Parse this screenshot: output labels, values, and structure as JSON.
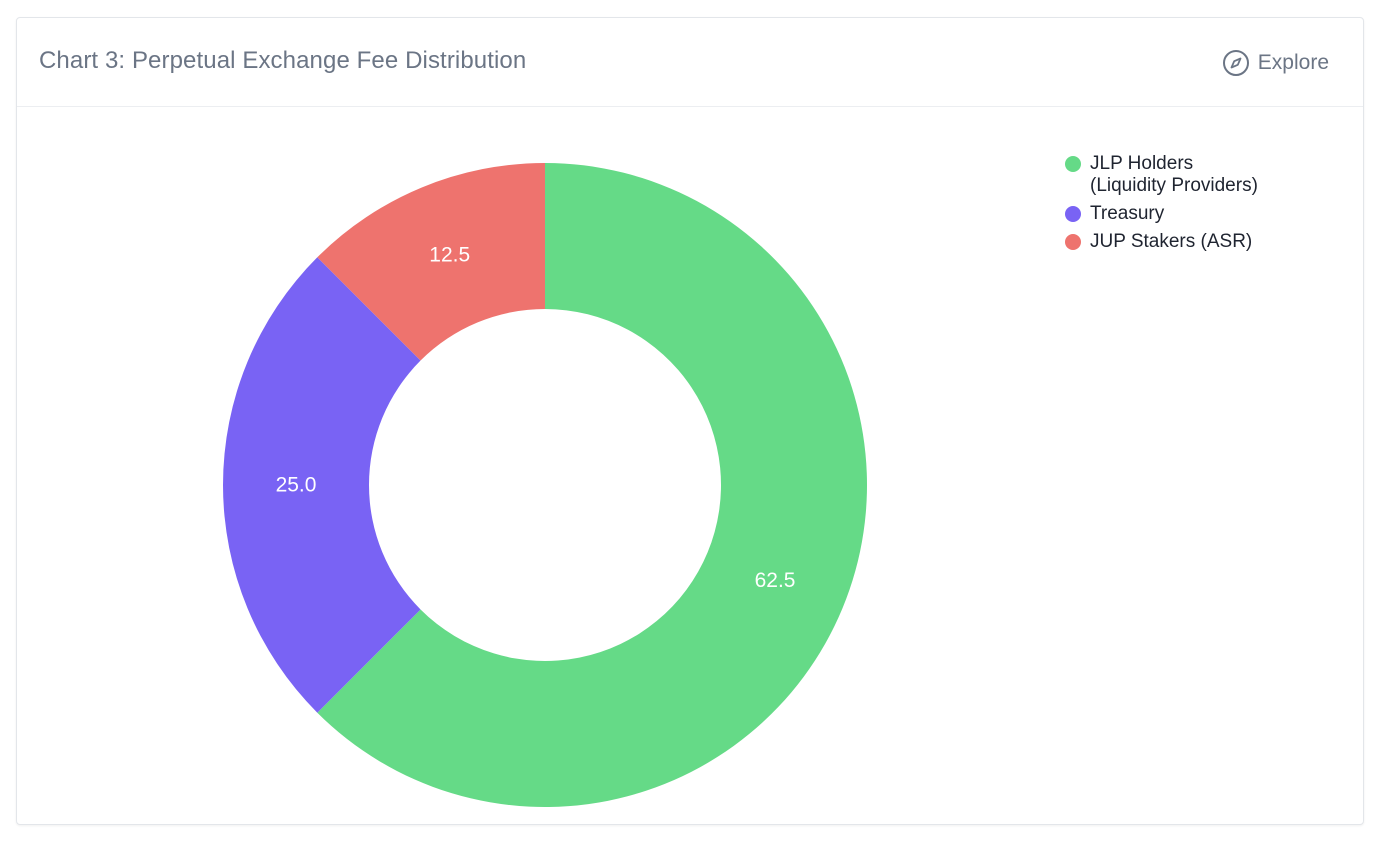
{
  "header": {
    "title": "Chart 3: Perpetual Exchange Fee Distribution",
    "explore_label": "Explore",
    "explore_icon": "compass-icon"
  },
  "chart_data": {
    "type": "pie",
    "variant": "donut",
    "categories": [
      "JLP Holders\n(Liquidity Providers)",
      "Treasury",
      "JUP Stakers (ASR)"
    ],
    "values": [
      62.5,
      25.0,
      12.5
    ],
    "value_labels": [
      "62.5",
      "25.0",
      "12.5"
    ],
    "colors": [
      "#65da87",
      "#7963f4",
      "#ee736e"
    ],
    "legend_position": "top-right",
    "start_angle": "12 o'clock, clockwise"
  }
}
